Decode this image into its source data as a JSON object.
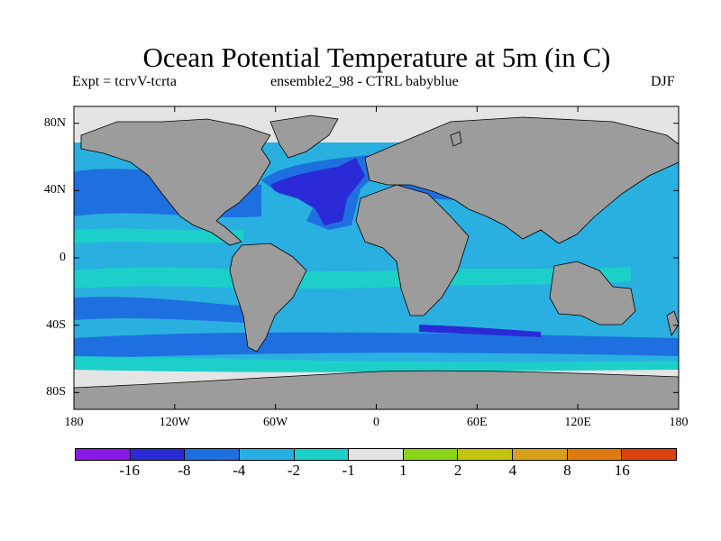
{
  "title": "Ocean Potential Temperature at 5m (in C)",
  "subtitle_left": "Expt = tcrvV-tcrta",
  "subtitle_center": "ensemble2_98 - CTRL babyblue",
  "season": "DJF",
  "axes": {
    "lon_ticks": [
      {
        "lon": -180,
        "label": "180"
      },
      {
        "lon": -120,
        "label": "120W"
      },
      {
        "lon": -60,
        "label": "60W"
      },
      {
        "lon": 0,
        "label": "0"
      },
      {
        "lon": 60,
        "label": "60E"
      },
      {
        "lon": 120,
        "label": "120E"
      },
      {
        "lon": 180,
        "label": "180"
      }
    ],
    "lat_ticks": [
      {
        "lat": 80,
        "label": "80N"
      },
      {
        "lat": 40,
        "label": "40N"
      },
      {
        "lat": 0,
        "label": "0"
      },
      {
        "lat": -40,
        "label": "40S"
      },
      {
        "lat": -80,
        "label": "80S"
      }
    ],
    "lon_range": [
      -180,
      180
    ],
    "lat_range": [
      -90,
      90
    ]
  },
  "colors": {
    "ocean_base": "#29b0e0",
    "land": "#9c9c9c",
    "coast": "#000000"
  },
  "legend": {
    "colors": [
      "#8a18e8",
      "#2a2ad6",
      "#1e70e0",
      "#27aee3",
      "#1dcfc9",
      "#e4e4e4",
      "#8ad41a",
      "#c6c210",
      "#d8a018",
      "#df7a10",
      "#dd4010"
    ],
    "labels": [
      "-16",
      "-8",
      "-4",
      "-2",
      "-1",
      "1",
      "2",
      "4",
      "8",
      "16"
    ]
  }
}
